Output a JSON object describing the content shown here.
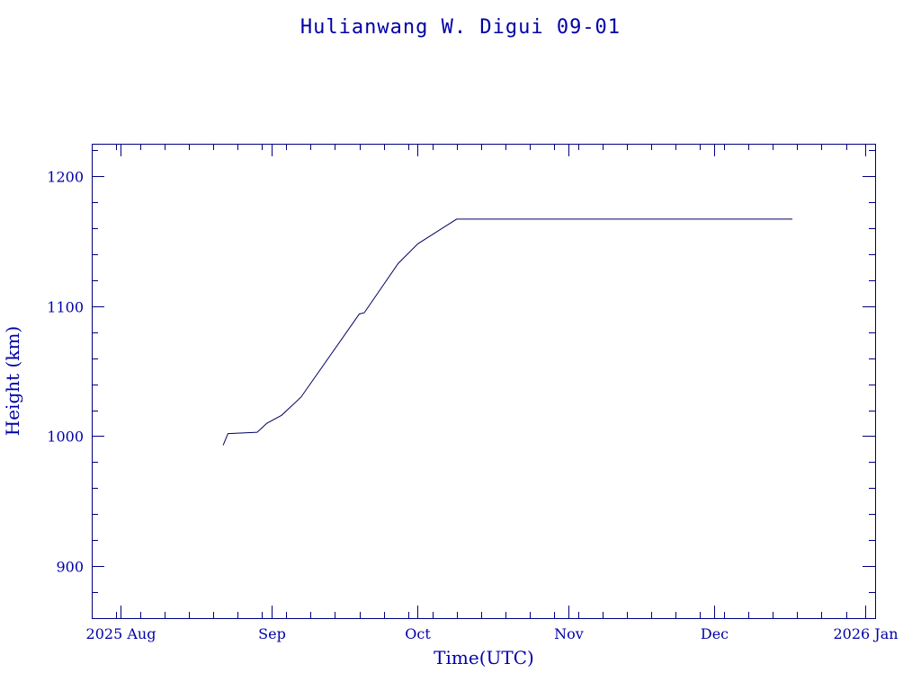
{
  "chart_data": {
    "type": "line",
    "title": "Hulianwang W. Digui 09-01",
    "xlabel": "Time(UTC)",
    "ylabel": "Height (km)",
    "xlim": [
      "2025-07-26",
      "2026-01-03"
    ],
    "ylim": [
      860,
      1225
    ],
    "x_ticks": [
      {
        "date": "2025-08-01",
        "label": "2025 Aug"
      },
      {
        "date": "2025-09-01",
        "label": "Sep"
      },
      {
        "date": "2025-10-01",
        "label": "Oct"
      },
      {
        "date": "2025-11-01",
        "label": "Nov"
      },
      {
        "date": "2025-12-01",
        "label": "Dec"
      },
      {
        "date": "2026-01-01",
        "label": "2026 Jan"
      }
    ],
    "x_minor_ticks": [
      "2025-07-31",
      "2025-08-05",
      "2025-08-10",
      "2025-08-15",
      "2025-08-20",
      "2025-08-25",
      "2025-08-30",
      "2025-09-04",
      "2025-09-09",
      "2025-09-14",
      "2025-09-19",
      "2025-09-24",
      "2025-09-29",
      "2025-10-04",
      "2025-10-09",
      "2025-10-14",
      "2025-10-19",
      "2025-10-24",
      "2025-10-29",
      "2025-11-03",
      "2025-11-08",
      "2025-11-13",
      "2025-11-18",
      "2025-11-23",
      "2025-11-28",
      "2025-12-03",
      "2025-12-08",
      "2025-12-13",
      "2025-12-18",
      "2025-12-23",
      "2025-12-28"
    ],
    "y_ticks": [
      900,
      1000,
      1100,
      1200
    ],
    "y_minor_step": 20,
    "grid": false,
    "series": [
      {
        "color": "#000060",
        "points": [
          {
            "x": "2025-08-22",
            "y": 993
          },
          {
            "x": "2025-08-23",
            "y": 1002
          },
          {
            "x": "2025-08-29",
            "y": 1003
          },
          {
            "x": "2025-08-31",
            "y": 1010
          },
          {
            "x": "2025-09-03",
            "y": 1016
          },
          {
            "x": "2025-09-05",
            "y": 1023
          },
          {
            "x": "2025-09-07",
            "y": 1030
          },
          {
            "x": "2025-09-19",
            "y": 1094
          },
          {
            "x": "2025-09-20",
            "y": 1095
          },
          {
            "x": "2025-09-27",
            "y": 1133
          },
          {
            "x": "2025-10-01",
            "y": 1148
          },
          {
            "x": "2025-10-09",
            "y": 1167
          },
          {
            "x": "2025-12-17",
            "y": 1167
          }
        ]
      }
    ]
  }
}
